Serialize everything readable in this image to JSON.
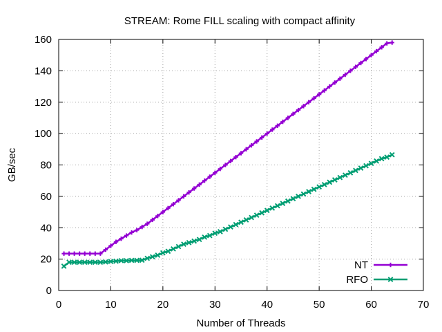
{
  "chart_data": {
    "type": "line",
    "title": "STREAM: Rome FILL scaling with compact affinity",
    "xlabel": "Number of Threads",
    "ylabel": "GB/sec",
    "xlim": [
      0,
      70
    ],
    "ylim": [
      0,
      160
    ],
    "xticks": [
      "0",
      "10",
      "20",
      "30",
      "40",
      "50",
      "60",
      "70"
    ],
    "yticks": [
      "0",
      "20",
      "40",
      "60",
      "80",
      "100",
      "120",
      "140",
      "160"
    ],
    "grid": true,
    "legend_position": "bottom-right",
    "series": [
      {
        "name": "NT",
        "color": "#9400d3",
        "marker": "plus",
        "x": [
          1,
          2,
          3,
          4,
          5,
          6,
          7,
          8,
          9,
          10,
          11,
          12,
          13,
          14,
          15,
          16,
          17,
          18,
          19,
          20,
          21,
          22,
          23,
          24,
          25,
          26,
          27,
          28,
          29,
          30,
          31,
          32,
          33,
          34,
          35,
          36,
          37,
          38,
          39,
          40,
          41,
          42,
          43,
          44,
          45,
          46,
          47,
          48,
          49,
          50,
          51,
          52,
          53,
          54,
          55,
          56,
          57,
          58,
          59,
          60,
          61,
          62,
          63,
          64
        ],
        "y": [
          23.5,
          23.5,
          23.5,
          23.5,
          23.5,
          23.5,
          23.5,
          23.5,
          26,
          28.5,
          31,
          33,
          35,
          37,
          38.5,
          40.5,
          42.5,
          45,
          47.5,
          50,
          52.5,
          55,
          57.5,
          60,
          62.5,
          65,
          67.5,
          70,
          72.5,
          75,
          77.5,
          80,
          82.5,
          85,
          87.5,
          90,
          92.5,
          95,
          97.5,
          100,
          102.5,
          105,
          107.5,
          110,
          112.5,
          115,
          117.5,
          120,
          122.5,
          125,
          127.5,
          130,
          132.5,
          135,
          137.5,
          140,
          142.5,
          145,
          147.5,
          150,
          152.5,
          155,
          157.5,
          158
        ]
      },
      {
        "name": "RFO",
        "color": "#009e73",
        "marker": "cross",
        "x": [
          1,
          2,
          3,
          4,
          5,
          6,
          7,
          8,
          9,
          10,
          11,
          12,
          13,
          14,
          15,
          16,
          17,
          18,
          19,
          20,
          21,
          22,
          23,
          24,
          25,
          26,
          27,
          28,
          29,
          30,
          31,
          32,
          33,
          34,
          35,
          36,
          37,
          38,
          39,
          40,
          41,
          42,
          43,
          44,
          45,
          46,
          47,
          48,
          49,
          50,
          51,
          52,
          53,
          54,
          55,
          56,
          57,
          58,
          59,
          60,
          61,
          62,
          63,
          64
        ],
        "y": [
          15.5,
          18,
          18,
          18,
          18,
          18,
          18,
          18,
          18.2,
          18.5,
          18.7,
          19,
          19,
          19.2,
          19.2,
          19.3,
          20.5,
          21.5,
          22.5,
          24,
          25,
          26.5,
          28,
          29.5,
          30.5,
          31.5,
          32.5,
          34,
          35,
          36.5,
          37.5,
          39,
          40.5,
          42,
          43.5,
          45,
          46.5,
          48,
          49.5,
          51,
          52.5,
          54,
          55.5,
          57,
          58.5,
          60,
          61.5,
          63,
          64.5,
          66,
          67.5,
          69,
          70.5,
          72,
          73.5,
          75,
          76.5,
          78,
          79.5,
          81,
          82.5,
          84,
          85,
          86.5
        ]
      }
    ]
  }
}
